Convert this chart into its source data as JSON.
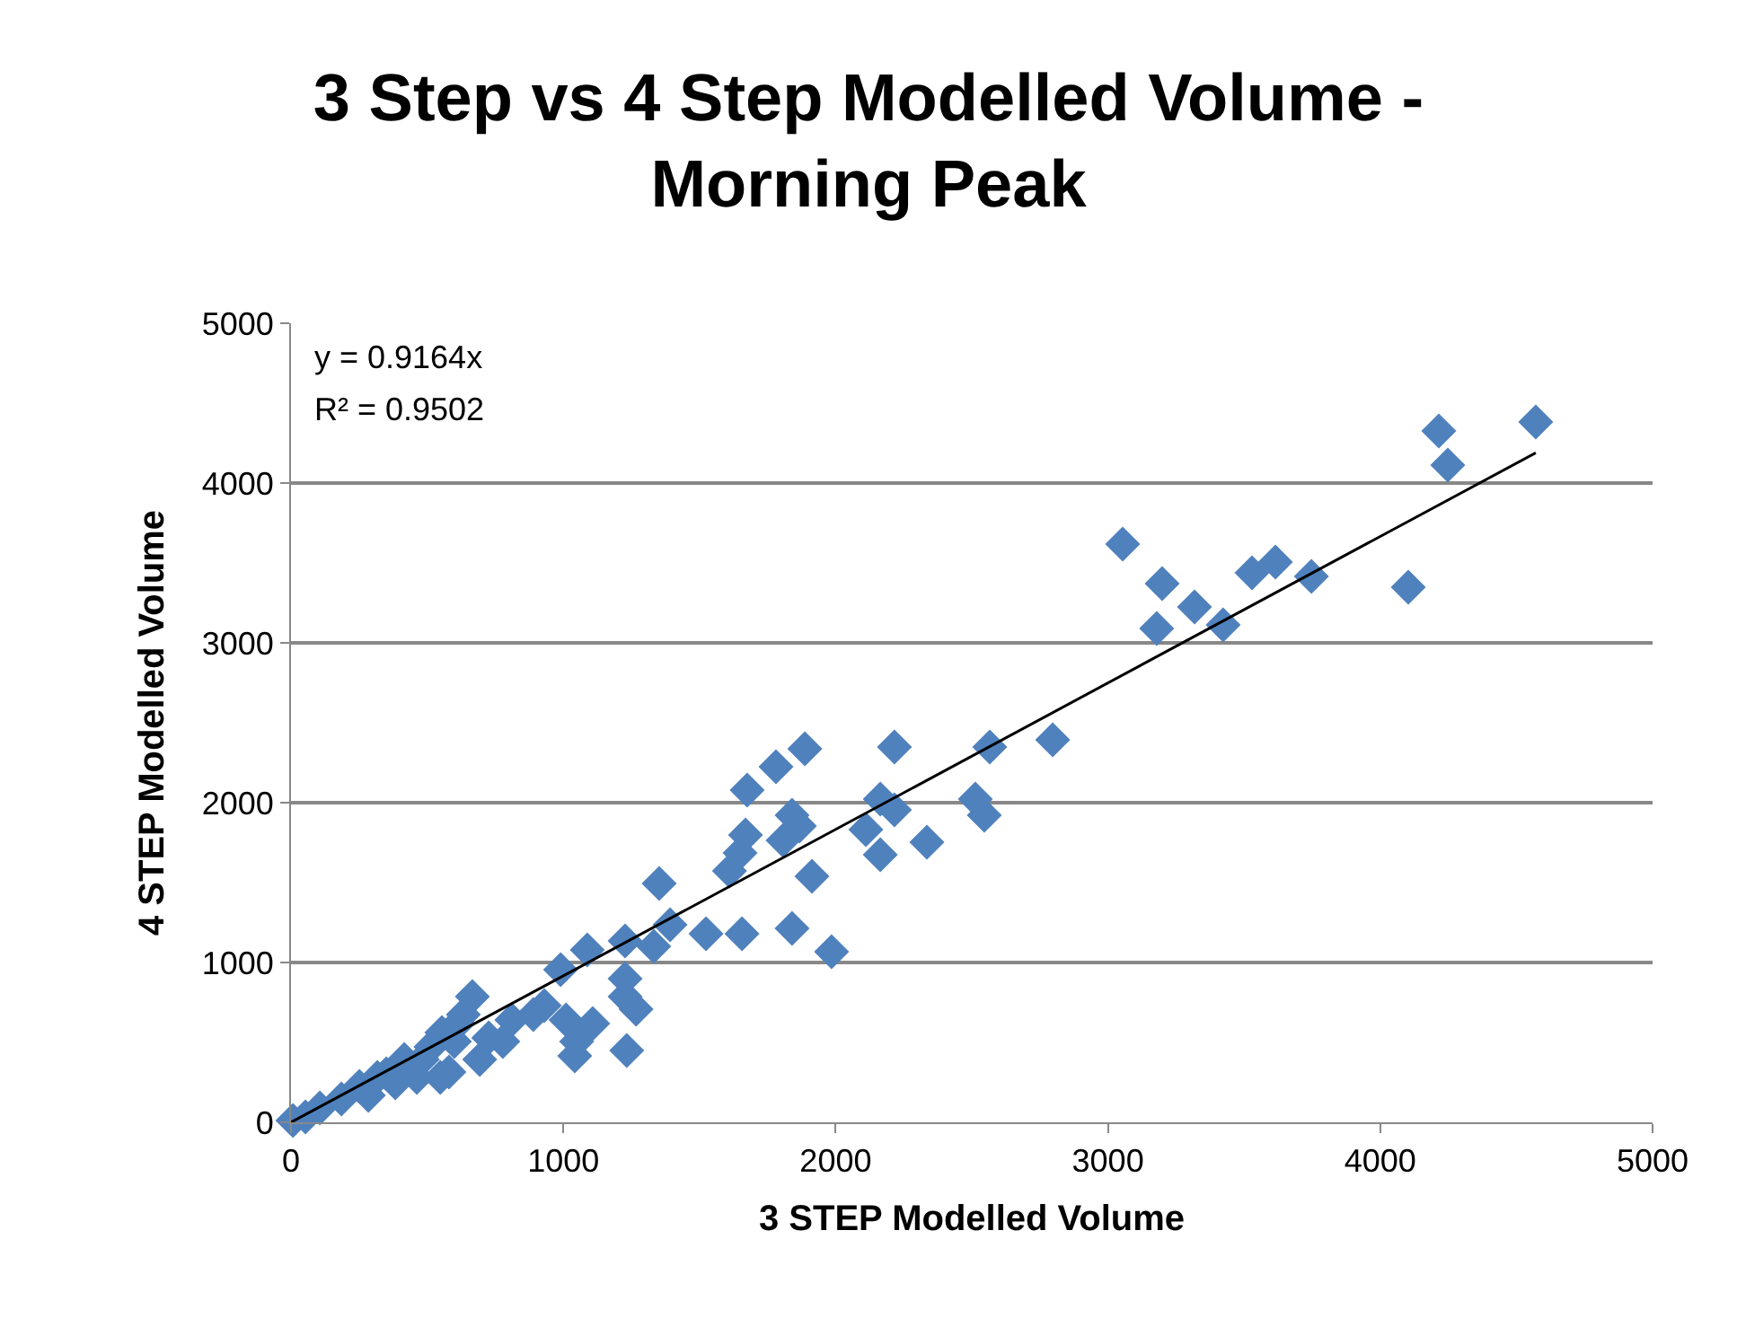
{
  "chart_data": {
    "type": "scatter",
    "title": "3 Step vs 4 Step Modelled Volume - Morning Peak",
    "xlabel": "3 STEP Modelled Volume",
    "ylabel": "4 STEP Modelled Volume",
    "xlim": [
      0,
      5000
    ],
    "xticks": [
      0,
      1000,
      2000,
      3000,
      4000,
      5000
    ],
    "ylim": [
      0,
      5000
    ],
    "yticks": [
      0,
      1000,
      2000,
      3000,
      4000,
      5000
    ],
    "grid": "y",
    "marker": "diamond",
    "annotations": [
      "y = 0.9164x",
      "R² = 0.9502"
    ],
    "series": [
      {
        "color": "#4f81bd",
        "x": [
          4571,
          4215,
          4248,
          4103,
          3747,
          3615,
          3529,
          3423,
          3318,
          3199,
          3179,
          3054,
          2797,
          2566,
          2546,
          2513,
          2335,
          2216,
          2216,
          2164,
          2164,
          2111,
          1887,
          1781,
          1675,
          1840,
          1913,
          1867,
          1807,
          1669,
          1649,
          1610,
          1656,
          1840,
          1985,
          1524,
          1352,
          1392,
          1332,
          1227,
          1227,
          1233,
          1227,
          1267,
          1088,
          1108,
          1049,
          1042,
          990,
          1010,
          930,
          890,
          811,
          726,
          693,
          633,
          666,
          600,
          554,
          514,
          482,
          416,
          462,
          317,
          251,
          185,
          106,
          53,
          7,
          548,
          383,
          284,
          350,
          613,
          580,
          778
        ],
        "values": [
          4382,
          4326,
          4112,
          3348,
          3416,
          3506,
          3438,
          3112,
          3225,
          3371,
          3090,
          3618,
          2393,
          2348,
          1921,
          2022,
          1753,
          2348,
          1955,
          2022,
          1674,
          1831,
          2337,
          2225,
          2079,
          1921,
          1539,
          1854,
          1764,
          1798,
          1685,
          1573,
          1180,
          1213,
          1067,
          1180,
          1494,
          1236,
          1101,
          1135,
          899,
          449,
          787,
          708,
          1079,
          618,
          506,
          416,
          955,
          640,
          730,
          674,
          640,
          528,
          393,
          674,
          787,
          506,
          562,
          472,
          393,
          393,
          281,
          281,
          225,
          146,
          90,
          34,
          11,
          281,
          247,
          169,
          303,
          618,
          315,
          506
        ]
      },
      {
        "type": "line",
        "color": "#000000",
        "marker": "none",
        "x": [
          0,
          4571
        ],
        "values": [
          0,
          4189
        ]
      }
    ]
  }
}
